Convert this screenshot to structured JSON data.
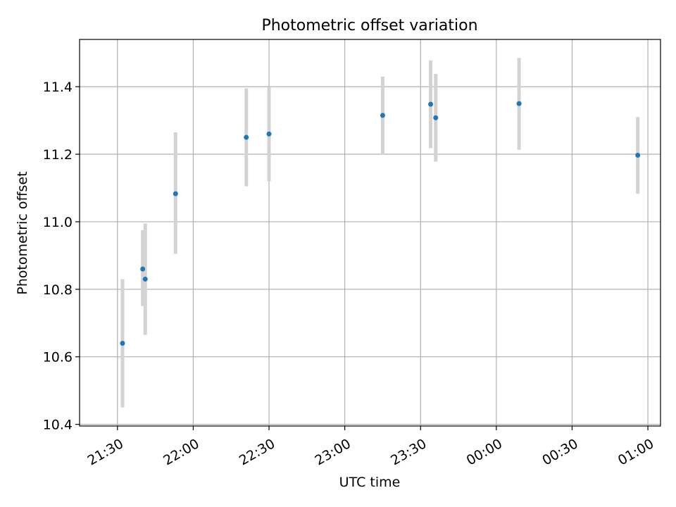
{
  "chart_data": {
    "type": "scatter",
    "title": "Photometric offset variation",
    "xlabel": "UTC time",
    "ylabel": "Photometric offset",
    "grid": true,
    "xlim": [
      "21:15",
      "01:05"
    ],
    "ylim": [
      10.395,
      11.54
    ],
    "xticks": [
      "21:30",
      "22:00",
      "22:30",
      "23:00",
      "23:30",
      "00:00",
      "00:30",
      "01:00"
    ],
    "yticks": [
      10.4,
      10.6,
      10.8,
      11.0,
      11.2,
      11.4
    ],
    "ytick_labels": [
      "10.4",
      "10.6",
      "10.8",
      "11.0",
      "11.2",
      "11.4"
    ],
    "marker_color": "#1f77b4",
    "errorbar_color": "#d3d3d3",
    "points": [
      {
        "time": "21:32",
        "y": 10.64,
        "err_low": 10.45,
        "err_high": 10.83
      },
      {
        "time": "21:40",
        "y": 10.86,
        "err_low": 10.75,
        "err_high": 10.975
      },
      {
        "time": "21:41",
        "y": 10.83,
        "err_low": 10.665,
        "err_high": 10.995
      },
      {
        "time": "21:53",
        "y": 11.083,
        "err_low": 10.905,
        "err_high": 11.265
      },
      {
        "time": "22:21",
        "y": 11.25,
        "err_low": 11.105,
        "err_high": 11.395
      },
      {
        "time": "22:30",
        "y": 11.26,
        "err_low": 11.12,
        "err_high": 11.4
      },
      {
        "time": "23:15",
        "y": 11.315,
        "err_low": 11.2,
        "err_high": 11.43
      },
      {
        "time": "23:34",
        "y": 11.348,
        "err_low": 11.218,
        "err_high": 11.478
      },
      {
        "time": "23:36",
        "y": 11.308,
        "err_low": 11.178,
        "err_high": 11.438
      },
      {
        "time": "00:09",
        "y": 11.35,
        "err_low": 11.213,
        "err_high": 11.485
      },
      {
        "time": "00:56",
        "y": 11.197,
        "err_low": 11.083,
        "err_high": 11.31
      }
    ]
  }
}
